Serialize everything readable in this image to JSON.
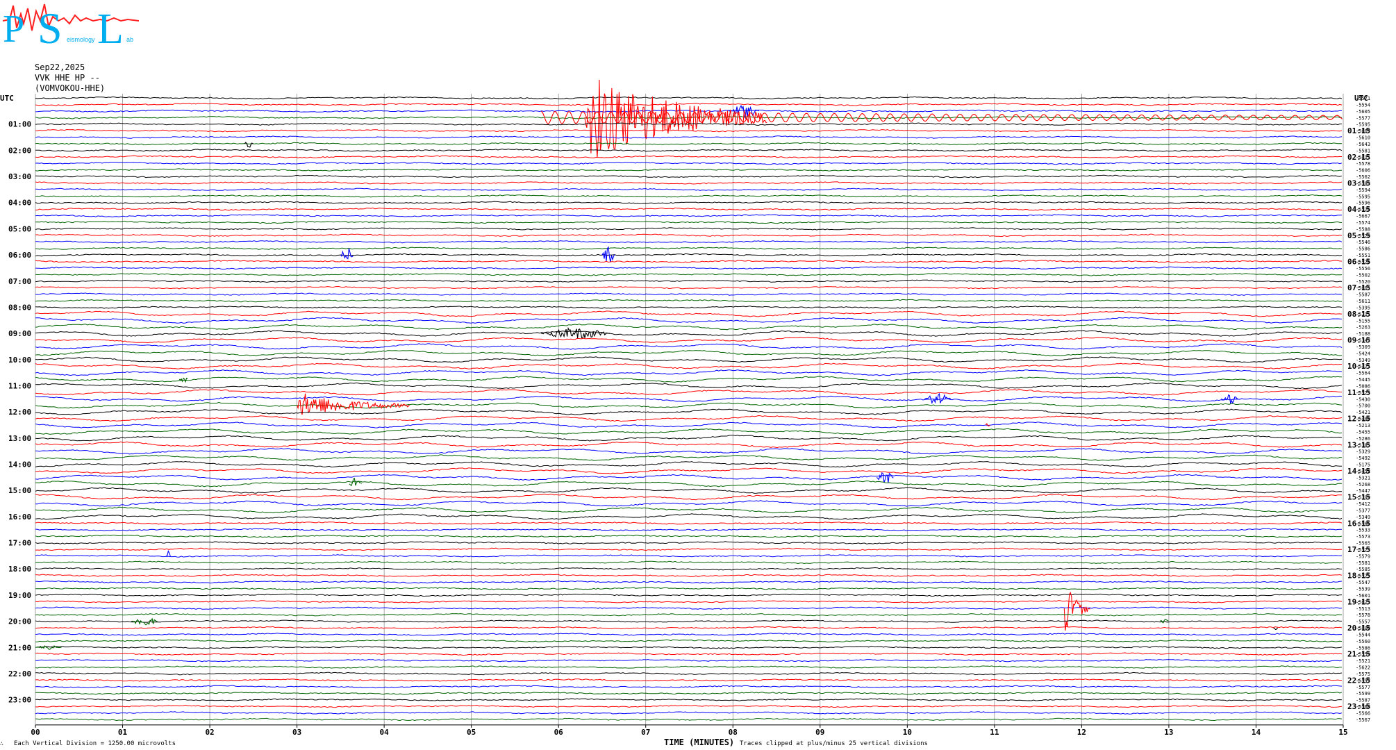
{
  "logo": {
    "letters": [
      "P",
      "S",
      "L"
    ],
    "small_text": [
      "eismology",
      "ab"
    ]
  },
  "header": {
    "date": "Sep22,2025",
    "channel": "VVK HHE HP --",
    "station": "(VOMVOKOU-HHE)"
  },
  "left_axis": {
    "label": "UTC",
    "ticks": [
      "01:00",
      "02:00",
      "03:00",
      "04:00",
      "05:00",
      "06:00",
      "07:00",
      "08:00",
      "09:00",
      "10:00",
      "11:00",
      "12:00",
      "13:00",
      "14:00",
      "15:00",
      "16:00",
      "17:00",
      "18:00",
      "19:00",
      "20:00",
      "21:00",
      "22:00",
      "23:00"
    ]
  },
  "right_axis": {
    "label": "UTC",
    "ticks": [
      "01:15",
      "02:15",
      "03:15",
      "04:15",
      "05:15",
      "06:15",
      "07:15",
      "08:15",
      "09:15",
      "10:15",
      "11:15",
      "12:15",
      "13:15",
      "14:15",
      "15:15",
      "16:15",
      "17:15",
      "18:15",
      "19:15",
      "20:15",
      "21:15",
      "22:15",
      "23:15"
    ]
  },
  "footer": {
    "division": "Each Vertical Division = 1250.00 microvolts",
    "xlabel": "TIME (MINUTES)",
    "clip": "Traces clipped at plus/minus 25 vertical divisions",
    "mark": "∴"
  },
  "colors": {
    "trace_cycle": [
      "#000000",
      "#ff0000",
      "#0000ff",
      "#006400"
    ],
    "grid": "#808080",
    "logo": "#00aeef",
    "logo_wave": "#ff2020"
  },
  "chart_data": {
    "type": "line",
    "title": "",
    "xlabel": "TIME (MINUTES)",
    "ylabel": "UTC",
    "xlim": [
      0,
      15
    ],
    "x_ticks": [
      "00",
      "01",
      "02",
      "03",
      "04",
      "05",
      "06",
      "07",
      "08",
      "09",
      "10",
      "11",
      "12",
      "13",
      "14",
      "15"
    ],
    "trace_count": 96,
    "trace_interval_minutes": 15,
    "vertical_division_microvolts": 1250,
    "clip_divisions": 25,
    "offset_labels": [
      "-5571",
      "-5554",
      "-5605",
      "-5577",
      "-5595",
      "-5607",
      "-5610",
      "-5643",
      "-5581",
      "-5611",
      "-5578",
      "-5606",
      "-5562",
      "-5583",
      "-5594",
      "-5595",
      "-5596",
      "-5576",
      "-5667",
      "-5574",
      "-5588",
      "-5570",
      "-5546",
      "-5586",
      "-5551",
      "-5576",
      "-5556",
      "-5502",
      "-5520",
      "-5601",
      "-5587",
      "-5611",
      "-5395",
      "-5211",
      "-5155",
      "-5263",
      "-5188",
      "-5147",
      "-5309",
      "-5424",
      "-5349",
      "-5471",
      "-5564",
      "-5445",
      "-5086",
      "-5573",
      "-5430",
      "-5700",
      "-5421",
      "-5480",
      "-5213",
      "-5455",
      "-5286",
      "-5185",
      "-5329",
      "-5492",
      "-5175",
      "-5452",
      "-5321",
      "-5268",
      "-5447",
      "-5399",
      "-5412",
      "-5377",
      "-5349",
      "-5566",
      "-5533",
      "-5573",
      "-5565",
      "-5573",
      "-5579",
      "-5581",
      "-5585",
      "-5575",
      "-5547",
      "-5539",
      "-5601",
      "-5623",
      "-5513",
      "-5578",
      "-5557",
      "-5600",
      "-5544",
      "-5560",
      "-5586",
      "-5559",
      "-5521",
      "-5622",
      "-5575",
      "-5557",
      "-5577",
      "-5599",
      "-5587",
      "-5568",
      "-5566",
      "-5567"
    ],
    "events": [
      {
        "trace": 3,
        "minute": 5.8,
        "minute_end": 15,
        "amplitude": 9,
        "color_index": 1,
        "kind": "tail"
      },
      {
        "trace": 3,
        "minute": 6.3,
        "minute_end": 8.4,
        "amplitude": 70,
        "color_index": 1,
        "kind": "quake"
      },
      {
        "trace": 2,
        "minute": 7.95,
        "minute_end": 8.3,
        "amplitude": 10,
        "color_index": 2,
        "kind": "burst"
      },
      {
        "trace": 7,
        "minute": 2.4,
        "minute_end": 2.5,
        "amplitude": 6,
        "color_index": 0,
        "kind": "burst"
      },
      {
        "trace": 24,
        "minute": 3.5,
        "minute_end": 3.65,
        "amplitude": 12,
        "color_index": 2,
        "kind": "burst"
      },
      {
        "trace": 24,
        "minute": 6.5,
        "minute_end": 6.65,
        "amplitude": 12,
        "color_index": 2,
        "kind": "burst"
      },
      {
        "trace": 36,
        "minute": 5.8,
        "minute_end": 6.6,
        "amplitude": 8,
        "color_index": 0,
        "kind": "burst"
      },
      {
        "trace": 43,
        "minute": 1.65,
        "minute_end": 1.75,
        "amplitude": 5,
        "color_index": 3,
        "kind": "burst"
      },
      {
        "trace": 47,
        "minute": 3.0,
        "minute_end": 4.3,
        "amplitude": 20,
        "color_index": 1,
        "kind": "quake"
      },
      {
        "trace": 46,
        "minute": 10.2,
        "minute_end": 10.5,
        "amplitude": 8,
        "color_index": 2,
        "kind": "burst"
      },
      {
        "trace": 46,
        "minute": 13.6,
        "minute_end": 13.8,
        "amplitude": 8,
        "color_index": 2,
        "kind": "burst"
      },
      {
        "trace": 50,
        "minute": 10.9,
        "minute_end": 10.95,
        "amplitude": 4,
        "color_index": 1,
        "kind": "burst"
      },
      {
        "trace": 58,
        "minute": 9.65,
        "minute_end": 9.85,
        "amplitude": 9,
        "color_index": 2,
        "kind": "burst"
      },
      {
        "trace": 59,
        "minute": 3.6,
        "minute_end": 3.75,
        "amplitude": 9,
        "color_index": 3,
        "kind": "burst"
      },
      {
        "trace": 70,
        "minute": 1.5,
        "minute_end": 1.55,
        "amplitude": 10,
        "color_index": 2,
        "kind": "burst"
      },
      {
        "trace": 78,
        "minute": 11.8,
        "minute_end": 12.1,
        "amplitude": 40,
        "color_index": 1,
        "kind": "quake"
      },
      {
        "trace": 80,
        "minute": 1.1,
        "minute_end": 1.4,
        "amplitude": 8,
        "color_index": 3,
        "kind": "burst"
      },
      {
        "trace": 80,
        "minute": 12.9,
        "minute_end": 13.0,
        "amplitude": 4,
        "color_index": 3,
        "kind": "burst"
      },
      {
        "trace": 81,
        "minute": 14.2,
        "minute_end": 14.25,
        "amplitude": 3,
        "color_index": 0,
        "kind": "burst"
      },
      {
        "trace": 84,
        "minute": 0.0,
        "minute_end": 0.3,
        "amplitude": 3,
        "color_index": 3,
        "kind": "burst"
      }
    ]
  }
}
